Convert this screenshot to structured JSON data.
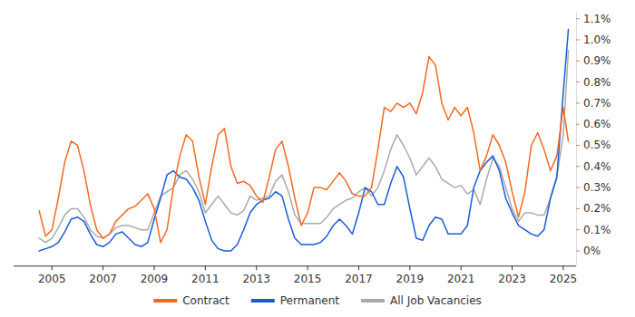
{
  "chart_data": {
    "type": "line",
    "x": [
      2004.5,
      2004.75,
      2005,
      2005.25,
      2005.5,
      2005.75,
      2006,
      2006.25,
      2006.5,
      2006.75,
      2007,
      2007.25,
      2007.5,
      2007.75,
      2008,
      2008.25,
      2008.5,
      2008.75,
      2009,
      2009.25,
      2009.5,
      2009.75,
      2010,
      2010.25,
      2010.5,
      2010.75,
      2011,
      2011.25,
      2011.5,
      2011.75,
      2012,
      2012.25,
      2012.5,
      2012.75,
      2013,
      2013.25,
      2013.5,
      2013.75,
      2014,
      2014.25,
      2014.5,
      2014.75,
      2015,
      2015.25,
      2015.5,
      2015.75,
      2016,
      2016.25,
      2016.5,
      2016.75,
      2017,
      2017.25,
      2017.5,
      2017.75,
      2018,
      2018.25,
      2018.5,
      2018.75,
      2019,
      2019.25,
      2019.5,
      2019.75,
      2020,
      2020.25,
      2020.5,
      2020.75,
      2021,
      2021.25,
      2021.5,
      2021.75,
      2022,
      2022.25,
      2022.5,
      2022.75,
      2023,
      2023.25,
      2023.5,
      2023.75,
      2024,
      2024.25,
      2024.5,
      2024.75,
      2025,
      2025.2
    ],
    "series": [
      {
        "name": "Contract",
        "color": "#f26a21",
        "values": [
          0.19,
          0.07,
          0.1,
          0.25,
          0.42,
          0.52,
          0.5,
          0.38,
          0.22,
          0.1,
          0.06,
          0.08,
          0.14,
          0.17,
          0.2,
          0.21,
          0.24,
          0.27,
          0.2,
          0.04,
          0.1,
          0.3,
          0.45,
          0.55,
          0.52,
          0.35,
          0.22,
          0.4,
          0.55,
          0.58,
          0.4,
          0.32,
          0.33,
          0.31,
          0.26,
          0.23,
          0.35,
          0.48,
          0.52,
          0.4,
          0.25,
          0.12,
          0.18,
          0.3,
          0.3,
          0.29,
          0.33,
          0.37,
          0.33,
          0.27,
          0.26,
          0.26,
          0.3,
          0.48,
          0.68,
          0.66,
          0.7,
          0.68,
          0.7,
          0.65,
          0.75,
          0.92,
          0.88,
          0.7,
          0.62,
          0.68,
          0.64,
          0.68,
          0.56,
          0.38,
          0.45,
          0.55,
          0.5,
          0.42,
          0.28,
          0.16,
          0.28,
          0.5,
          0.56,
          0.48,
          0.38,
          0.45,
          0.68,
          0.52
        ]
      },
      {
        "name": "Permanent",
        "color": "#1a5ad9",
        "values": [
          0,
          0.01,
          0.02,
          0.04,
          0.09,
          0.15,
          0.16,
          0.14,
          0.08,
          0.03,
          0.02,
          0.04,
          0.08,
          0.09,
          0.06,
          0.03,
          0.02,
          0.04,
          0.15,
          0.25,
          0.36,
          0.38,
          0.35,
          0.34,
          0.3,
          0.24,
          0.14,
          0.05,
          0.01,
          0,
          0,
          0.03,
          0.1,
          0.18,
          0.22,
          0.24,
          0.25,
          0.28,
          0.26,
          0.15,
          0.06,
          0.03,
          0.03,
          0.03,
          0.04,
          0.07,
          0.12,
          0.15,
          0.12,
          0.08,
          0.18,
          0.3,
          0.28,
          0.22,
          0.22,
          0.32,
          0.4,
          0.35,
          0.2,
          0.06,
          0.05,
          0.12,
          0.16,
          0.15,
          0.08,
          0.08,
          0.08,
          0.12,
          0.3,
          0.38,
          0.42,
          0.45,
          0.38,
          0.25,
          0.18,
          0.12,
          0.1,
          0.08,
          0.07,
          0.1,
          0.25,
          0.35,
          0.75,
          1.05
        ]
      },
      {
        "name": "All Job Vacancies",
        "color": "#aaaaaa",
        "values": [
          0.06,
          0.04,
          0.06,
          0.11,
          0.17,
          0.2,
          0.2,
          0.16,
          0.1,
          0.07,
          0.06,
          0.08,
          0.11,
          0.12,
          0.12,
          0.11,
          0.1,
          0.1,
          0.18,
          0.26,
          0.28,
          0.3,
          0.36,
          0.38,
          0.34,
          0.28,
          0.18,
          0.22,
          0.26,
          0.22,
          0.18,
          0.17,
          0.19,
          0.26,
          0.24,
          0.25,
          0.26,
          0.33,
          0.36,
          0.28,
          0.17,
          0.13,
          0.13,
          0.13,
          0.13,
          0.16,
          0.2,
          0.22,
          0.24,
          0.25,
          0.28,
          0.3,
          0.26,
          0.3,
          0.38,
          0.48,
          0.55,
          0.5,
          0.44,
          0.36,
          0.4,
          0.44,
          0.4,
          0.34,
          0.32,
          0.3,
          0.31,
          0.27,
          0.29,
          0.22,
          0.34,
          0.44,
          0.4,
          0.3,
          0.2,
          0.14,
          0.18,
          0.18,
          0.17,
          0.17,
          0.25,
          0.35,
          0.55,
          0.95
        ]
      }
    ],
    "xlim": [
      2003.5,
      2025.5
    ],
    "xticks": [
      2005,
      2007,
      2009,
      2011,
      2013,
      2015,
      2017,
      2019,
      2021,
      2023,
      2025
    ],
    "ylim": [
      -0.07,
      1.13
    ],
    "yticks": [
      {
        "value": 0,
        "label": "0%"
      },
      {
        "value": 0.1,
        "label": "0.1%"
      },
      {
        "value": 0.2,
        "label": "0.2%"
      },
      {
        "value": 0.3,
        "label": "0.3%"
      },
      {
        "value": 0.4,
        "label": "0.4%"
      },
      {
        "value": 0.5,
        "label": "0.5%"
      },
      {
        "value": 0.6,
        "label": "0.6%"
      },
      {
        "value": 0.7,
        "label": "0.7%"
      },
      {
        "value": 0.8,
        "label": "0.8%"
      },
      {
        "value": 0.9,
        "label": "0.9%"
      },
      {
        "value": 1.0,
        "label": "1.0%"
      },
      {
        "value": 1.1,
        "label": "1.1%"
      }
    ],
    "grid": false,
    "legend": "bottom"
  }
}
